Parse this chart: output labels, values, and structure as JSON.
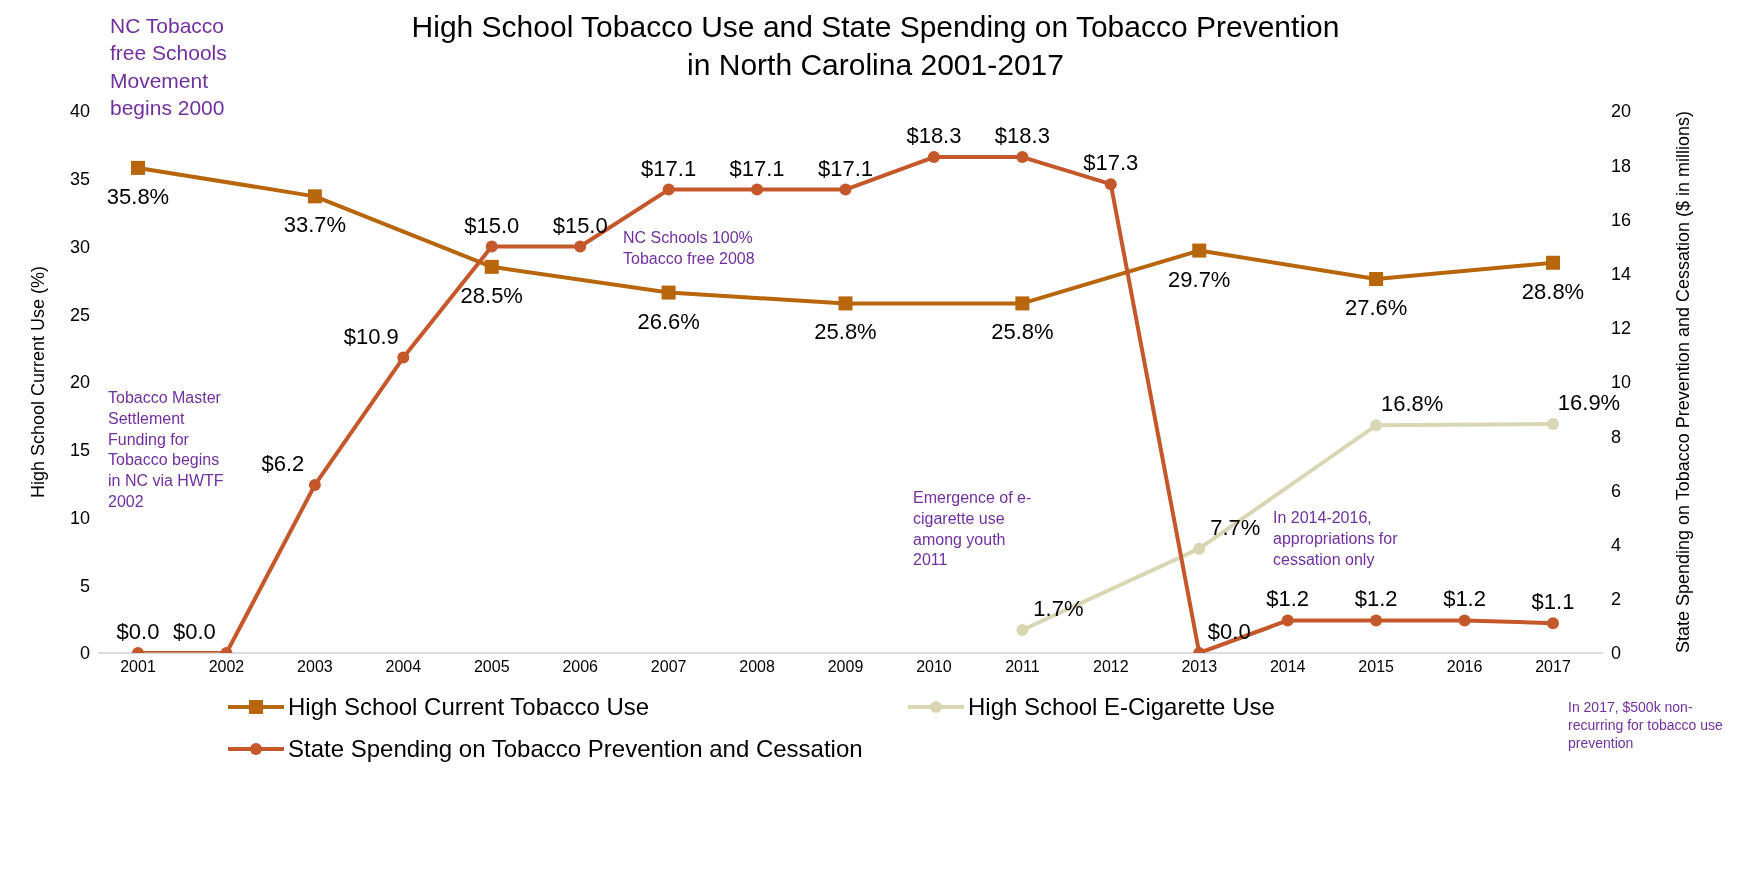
{
  "chart_data": {
    "type": "line",
    "title": "High School Tobacco Use and State Spending on Tobacco Prevention\nin North Carolina 2001-2017",
    "ylabel": "High School  Current Use (%)",
    "y2label": "State Spending on Tobacco Prevention and Cessation ($ in millions)",
    "categories": [
      "2001",
      "2002",
      "2003",
      "2004",
      "2005",
      "2006",
      "2007",
      "2008",
      "2009",
      "2010",
      "2011",
      "2012",
      "2013",
      "2014",
      "2015",
      "2016",
      "2017"
    ],
    "series": [
      {
        "name": "High School Current Tobacco Use",
        "color": "#b8660b",
        "marker": "square",
        "values": [
          35.8,
          null,
          33.7,
          null,
          28.5,
          null,
          26.6,
          null,
          25.8,
          null,
          25.8,
          null,
          29.7,
          null,
          27.6,
          null,
          28.8
        ],
        "value_labels": [
          "35.8%",
          null,
          "33.7%",
          null,
          "28.5%",
          null,
          "26.6%",
          null,
          "25.8%",
          null,
          "25.8%",
          null,
          "29.7%",
          null,
          "27.6%",
          null,
          "28.8%"
        ]
      },
      {
        "name": "High School E-Cigarette Use",
        "color": "#d9d6b4",
        "marker": "circle",
        "values": [
          null,
          null,
          null,
          null,
          null,
          null,
          null,
          null,
          null,
          null,
          1.7,
          null,
          7.7,
          null,
          16.8,
          null,
          16.9
        ],
        "value_labels": [
          null,
          null,
          null,
          null,
          null,
          null,
          null,
          null,
          null,
          null,
          "1.7%",
          null,
          "7.7%",
          null,
          "16.8%",
          null,
          "16.9%"
        ]
      },
      {
        "name": "State Spending on Tobacco Prevention and Cessation",
        "color": "#c5582a",
        "marker": "circle",
        "axis": "y2",
        "values": [
          0.0,
          0.0,
          6.2,
          10.9,
          15.0,
          15.0,
          17.1,
          17.1,
          17.1,
          18.3,
          18.3,
          17.3,
          0.0,
          1.2,
          1.2,
          1.2,
          1.1
        ],
        "value_labels": [
          "$0.0",
          "$0.0",
          "$6.2",
          "$10.9",
          "$15.0",
          "$15.0",
          "$17.1",
          "$17.1",
          "$17.1",
          "$18.3",
          "$18.3",
          "$17.3",
          "$0.0",
          "$1.2",
          "$1.2",
          "$1.2",
          "$1.1"
        ]
      }
    ],
    "ylim": [
      0,
      40
    ],
    "yticks": [
      0,
      5,
      10,
      15,
      20,
      25,
      30,
      35,
      40
    ],
    "y2lim": [
      0,
      20
    ],
    "y2ticks": [
      0,
      2,
      4,
      6,
      8,
      10,
      12,
      14,
      16,
      18,
      20
    ],
    "grid": false,
    "legend": "bottom",
    "annotations": [
      "NC Tobacco free Schools Movement begins 2000",
      "Tobacco Master Settlement Funding for Tobacco begins in NC via HWTF 2002",
      "NC  Schools 100% Tobacco free 2008",
      "Emergence of e-cigarette use among youth 2011",
      "In 2014-2016, appropriations for cessation only",
      "In 2017, $500k non-recurring for tobacco use prevention"
    ]
  }
}
